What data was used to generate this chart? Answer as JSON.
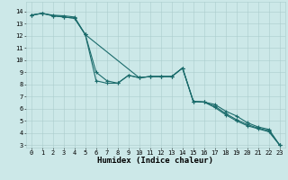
{
  "xlabel": "Humidex (Indice chaleur)",
  "bg_color": "#cce8e8",
  "grid_color": "#aacccc",
  "line_color": "#1a6b6b",
  "xlim": [
    -0.5,
    23.5
  ],
  "ylim": [
    2.8,
    14.8
  ],
  "yticks": [
    3,
    4,
    5,
    6,
    7,
    8,
    9,
    10,
    11,
    12,
    13,
    14
  ],
  "xticks": [
    0,
    1,
    2,
    3,
    4,
    5,
    6,
    7,
    8,
    9,
    10,
    11,
    12,
    13,
    14,
    15,
    16,
    17,
    18,
    19,
    20,
    21,
    22,
    23
  ],
  "series1_x": [
    0,
    1,
    2,
    3,
    4,
    5,
    6,
    7,
    8,
    9,
    10,
    11,
    12,
    13,
    14,
    15,
    16,
    17,
    18,
    19,
    20,
    21,
    22,
    23
  ],
  "series1_y": [
    13.7,
    13.85,
    13.7,
    13.65,
    13.55,
    12.1,
    8.3,
    8.1,
    8.1,
    8.75,
    8.55,
    8.65,
    8.65,
    8.65,
    9.35,
    6.6,
    6.55,
    6.35,
    5.8,
    5.4,
    4.85,
    4.5,
    4.3,
    3.0
  ],
  "series2_x": [
    0,
    1,
    2,
    3,
    4,
    5,
    6,
    7,
    8,
    9,
    10,
    11,
    12,
    13,
    14,
    15,
    16,
    17,
    18,
    19,
    20,
    21,
    22,
    23
  ],
  "series2_y": [
    13.7,
    13.85,
    13.65,
    13.55,
    13.45,
    12.1,
    9.0,
    8.3,
    8.1,
    8.75,
    8.55,
    8.65,
    8.65,
    8.65,
    9.35,
    6.6,
    6.55,
    6.1,
    5.5,
    5.0,
    4.6,
    4.35,
    4.1,
    3.0
  ],
  "series3_x": [
    0,
    1,
    2,
    3,
    4,
    5,
    10,
    11,
    12,
    13,
    14,
    15,
    16,
    17,
    18,
    19,
    20,
    21,
    22,
    23
  ],
  "series3_y": [
    13.7,
    13.85,
    13.65,
    13.55,
    13.45,
    12.1,
    8.55,
    8.65,
    8.65,
    8.65,
    9.35,
    6.6,
    6.55,
    6.2,
    5.6,
    5.1,
    4.7,
    4.4,
    4.2,
    3.0
  ],
  "marker": "+",
  "markersize": 3,
  "linewidth": 0.8,
  "xlabel_fontsize": 6.5,
  "tick_fontsize": 5.0
}
